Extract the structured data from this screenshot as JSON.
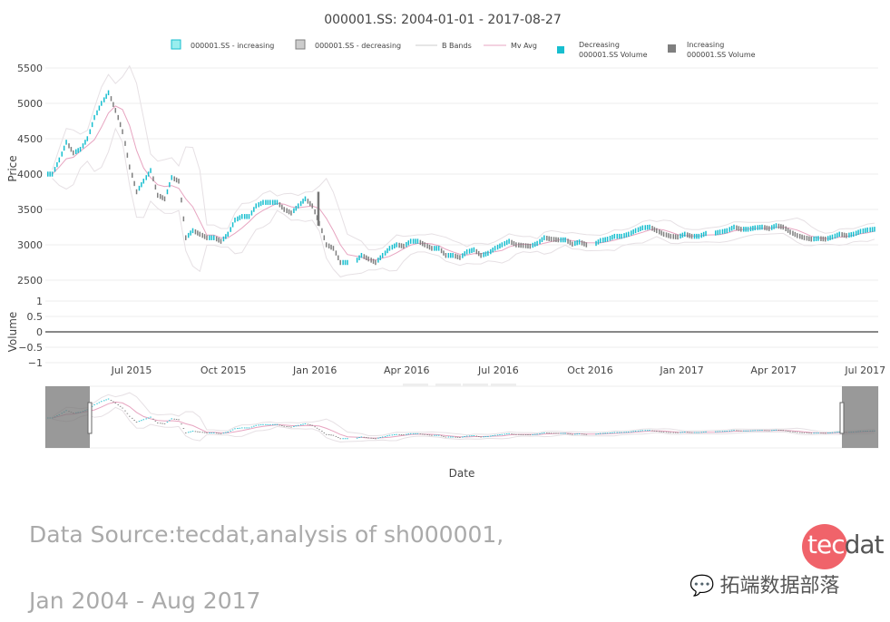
{
  "chart_data": {
    "type": "line",
    "title": "000001.SS: 2004-01-01 - 2017-08-27",
    "xlabel": "Date",
    "ylabel": "Price",
    "ylabel2": "Volume",
    "ylim": [
      2500,
      5500
    ],
    "yticks": [
      "5500",
      "5000",
      "4500",
      "4000",
      "3500",
      "3000",
      "2500"
    ],
    "volume_ylim": [
      -1,
      1
    ],
    "volume_ticks": [
      "1",
      "0.5",
      "0",
      "−0.5",
      "−1"
    ],
    "xticks": [
      "Jul 2015",
      "Oct 2015",
      "Jan 2016",
      "Apr 2016",
      "Jul 2016",
      "Oct 2016",
      "Jan 2017",
      "Apr 2017",
      "Jul 2017"
    ],
    "legend": [
      "000001.SS - increasing",
      "000001.SS - decreasing",
      "B Bands",
      "Mv Avg",
      "Decreasing",
      "000001.SS Volume",
      "Increasing",
      "000001.SS Volume"
    ],
    "legend_placement": "top",
    "colors": {
      "increasing": "#17becf",
      "decreasing": "#7f7f7f",
      "bands": "#e6e0e4",
      "mvavg": "#e7a4c0"
    },
    "series": [
      {
        "name": "000001.SS close",
        "points": [
          [
            "2015-04-13",
            4000
          ],
          [
            "2015-04-20",
            4200
          ],
          [
            "2015-04-27",
            4450
          ],
          [
            "2015-05-04",
            4300
          ],
          [
            "2015-05-11",
            4350
          ],
          [
            "2015-05-18",
            4500
          ],
          [
            "2015-05-25",
            4800
          ],
          [
            "2015-06-01",
            5000
          ],
          [
            "2015-06-08",
            5150
          ],
          [
            "2015-06-15",
            4900
          ],
          [
            "2015-06-22",
            4600
          ],
          [
            "2015-06-29",
            4100
          ],
          [
            "2015-07-06",
            3750
          ],
          [
            "2015-07-13",
            3900
          ],
          [
            "2015-07-20",
            4050
          ],
          [
            "2015-07-27",
            3700
          ],
          [
            "2015-08-03",
            3650
          ],
          [
            "2015-08-10",
            3950
          ],
          [
            "2015-08-17",
            3900
          ],
          [
            "2015-08-24",
            3100
          ],
          [
            "2015-08-31",
            3200
          ],
          [
            "2015-09-07",
            3150
          ],
          [
            "2015-09-14",
            3100
          ],
          [
            "2015-09-21",
            3100
          ],
          [
            "2015-09-28",
            3050
          ],
          [
            "2015-10-05",
            3150
          ],
          [
            "2015-10-12",
            3350
          ],
          [
            "2015-10-19",
            3400
          ],
          [
            "2015-10-26",
            3400
          ],
          [
            "2015-11-02",
            3550
          ],
          [
            "2015-11-09",
            3600
          ],
          [
            "2015-11-16",
            3600
          ],
          [
            "2015-11-23",
            3600
          ],
          [
            "2015-11-30",
            3500
          ],
          [
            "2015-12-07",
            3450
          ],
          [
            "2015-12-14",
            3550
          ],
          [
            "2015-12-21",
            3650
          ],
          [
            "2015-12-28",
            3550
          ],
          [
            "2016-01-04",
            3300
          ],
          [
            "2016-01-11",
            3000
          ],
          [
            "2016-01-18",
            2950
          ],
          [
            "2016-01-25",
            2750
          ],
          [
            "2016-02-01",
            2750
          ],
          [
            "2016-02-15",
            2850
          ],
          [
            "2016-02-22",
            2800
          ],
          [
            "2016-02-29",
            2750
          ],
          [
            "2016-03-07",
            2850
          ],
          [
            "2016-03-14",
            2950
          ],
          [
            "2016-03-21",
            3000
          ],
          [
            "2016-03-28",
            2980
          ],
          [
            "2016-04-04",
            3050
          ],
          [
            "2016-04-11",
            3050
          ],
          [
            "2016-04-18",
            3000
          ],
          [
            "2016-04-25",
            2950
          ],
          [
            "2016-05-02",
            2950
          ],
          [
            "2016-05-09",
            2850
          ],
          [
            "2016-05-16",
            2850
          ],
          [
            "2016-05-23",
            2820
          ],
          [
            "2016-05-30",
            2900
          ],
          [
            "2016-06-06",
            2930
          ],
          [
            "2016-06-13",
            2850
          ],
          [
            "2016-06-20",
            2880
          ],
          [
            "2016-06-27",
            2950
          ],
          [
            "2016-07-04",
            3000
          ],
          [
            "2016-07-11",
            3050
          ],
          [
            "2016-07-18",
            3000
          ],
          [
            "2016-07-25",
            2990
          ],
          [
            "2016-08-01",
            2980
          ],
          [
            "2016-08-08",
            3020
          ],
          [
            "2016-08-15",
            3100
          ],
          [
            "2016-08-22",
            3080
          ],
          [
            "2016-08-29",
            3070
          ],
          [
            "2016-09-05",
            3070
          ],
          [
            "2016-09-12",
            3010
          ],
          [
            "2016-09-19",
            3040
          ],
          [
            "2016-09-26",
            3000
          ],
          [
            "2016-10-10",
            3060
          ],
          [
            "2016-10-17",
            3080
          ],
          [
            "2016-10-24",
            3120
          ],
          [
            "2016-10-31",
            3120
          ],
          [
            "2016-11-07",
            3150
          ],
          [
            "2016-11-14",
            3200
          ],
          [
            "2016-11-21",
            3240
          ],
          [
            "2016-11-28",
            3250
          ],
          [
            "2016-12-05",
            3200
          ],
          [
            "2016-12-12",
            3150
          ],
          [
            "2016-12-19",
            3120
          ],
          [
            "2016-12-26",
            3110
          ],
          [
            "2017-01-02",
            3150
          ],
          [
            "2017-01-09",
            3120
          ],
          [
            "2017-01-16",
            3120
          ],
          [
            "2017-01-23",
            3160
          ],
          [
            "2017-02-06",
            3180
          ],
          [
            "2017-02-13",
            3200
          ],
          [
            "2017-02-20",
            3250
          ],
          [
            "2017-02-27",
            3220
          ],
          [
            "2017-03-06",
            3220
          ],
          [
            "2017-03-13",
            3240
          ],
          [
            "2017-03-20",
            3250
          ],
          [
            "2017-03-27",
            3230
          ],
          [
            "2017-04-03",
            3270
          ],
          [
            "2017-04-10",
            3250
          ],
          [
            "2017-04-17",
            3180
          ],
          [
            "2017-04-24",
            3130
          ],
          [
            "2017-05-01",
            3100
          ],
          [
            "2017-05-08",
            3080
          ],
          [
            "2017-05-15",
            3090
          ],
          [
            "2017-05-22",
            3080
          ],
          [
            "2017-05-29",
            3110
          ],
          [
            "2017-06-05",
            3150
          ],
          [
            "2017-06-12",
            3130
          ],
          [
            "2017-06-19",
            3150
          ],
          [
            "2017-06-26",
            3190
          ],
          [
            "2017-07-03",
            3210
          ],
          [
            "2017-07-10",
            3220
          ]
        ]
      }
    ],
    "annotation_bar": {
      "date": "2016-01-04",
      "low": 3270,
      "high": 3750
    }
  },
  "footer": {
    "line1": "Data Source:tecdat,analysis of sh000001,",
    "line2": "Jan 2004 - Aug 2017"
  },
  "logo": {
    "part1": "tec",
    "part2": "dat",
    "wechat": "拓端数据部落"
  }
}
